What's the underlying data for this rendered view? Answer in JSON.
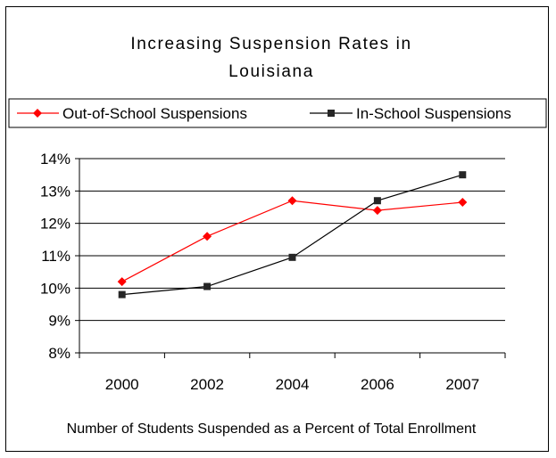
{
  "chart_data": {
    "type": "line",
    "title_lines": [
      "Increasing Suspension Rates in",
      "Louisiana"
    ],
    "categories": [
      "2000",
      "2002",
      "2004",
      "2006",
      "2007"
    ],
    "series": [
      {
        "name": "Out-of-School Suspensions",
        "values": [
          10.2,
          11.6,
          12.7,
          12.4,
          12.65
        ],
        "color": "#ff0000",
        "marker": "diamond"
      },
      {
        "name": "In-School Suspensions",
        "values": [
          9.8,
          10.05,
          10.95,
          12.7,
          13.5
        ],
        "color": "#000000",
        "marker": "square"
      }
    ],
    "ylim": [
      8,
      14
    ],
    "yticks": [
      14,
      13,
      12,
      11,
      10,
      9,
      8
    ],
    "ytick_labels": [
      "14%",
      "13%",
      "12%",
      "11%",
      "10%",
      "9%",
      "8%"
    ],
    "gridlines": true,
    "legend_position": "top",
    "caption": "Number of Students Suspended as a Percent of Total Enrollment"
  }
}
